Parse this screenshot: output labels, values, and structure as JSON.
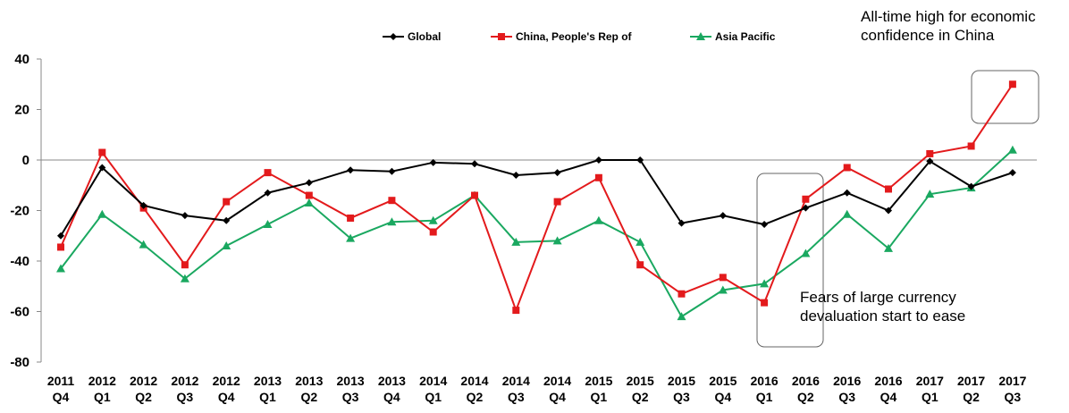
{
  "chart_data": {
    "type": "line",
    "title": "",
    "xlabel": "",
    "ylabel": "",
    "ylim": [
      -80,
      40
    ],
    "yticks": [
      40,
      20,
      0,
      -20,
      -40,
      -60,
      -80
    ],
    "categories": [
      [
        "2011",
        "Q4"
      ],
      [
        "2012",
        "Q1"
      ],
      [
        "2012",
        "Q2"
      ],
      [
        "2012",
        "Q3"
      ],
      [
        "2012",
        "Q4"
      ],
      [
        "2013",
        "Q1"
      ],
      [
        "2013",
        "Q2"
      ],
      [
        "2013",
        "Q3"
      ],
      [
        "2013",
        "Q4"
      ],
      [
        "2014",
        "Q1"
      ],
      [
        "2014",
        "Q2"
      ],
      [
        "2014",
        "Q3"
      ],
      [
        "2014",
        "Q4"
      ],
      [
        "2015",
        "Q1"
      ],
      [
        "2015",
        "Q2"
      ],
      [
        "2015",
        "Q3"
      ],
      [
        "2015",
        "Q4"
      ],
      [
        "2016",
        "Q1"
      ],
      [
        "2016",
        "Q2"
      ],
      [
        "2016",
        "Q3"
      ],
      [
        "2016",
        "Q4"
      ],
      [
        "2017",
        "Q1"
      ],
      [
        "2017",
        "Q2"
      ],
      [
        "2017",
        "Q3"
      ]
    ],
    "grid": false,
    "legend_position": "top",
    "series": [
      {
        "name": "Global",
        "color": "#000000",
        "marker": "diamond",
        "values": [
          -30,
          -3,
          -18,
          -22,
          -24,
          -13,
          -9,
          -4,
          -4.5,
          -1,
          -1.5,
          -6,
          -5,
          0,
          0,
          -25,
          -22,
          -25.5,
          -19,
          -13,
          -20,
          -0.5,
          -10.5,
          -5
        ]
      },
      {
        "name": "China, People's Rep of",
        "color": "#e31a1c",
        "marker": "square",
        "values": [
          -34.5,
          3,
          -19,
          -41.5,
          -16.5,
          -5,
          -14,
          -23,
          -16,
          -28.5,
          -14,
          -59.5,
          -16.5,
          -7,
          -41.5,
          -53,
          -46.5,
          -56.5,
          -15.5,
          -3,
          -11.5,
          2.5,
          5.5,
          30
        ]
      },
      {
        "name": "Asia Pacific",
        "color": "#1aa860",
        "marker": "triangle",
        "values": [
          -43,
          -21.5,
          -33.5,
          -47,
          -34,
          -25.5,
          -17,
          -31,
          -24.5,
          -24,
          -14,
          -32.5,
          -32,
          -24,
          -32.5,
          -62,
          -51.5,
          -49,
          -37,
          -21.5,
          -35,
          -13.5,
          -11,
          4
        ]
      }
    ],
    "annotations": [
      {
        "text_lines": [
          "All-time high for economic",
          "confidence in China"
        ]
      },
      {
        "text_lines": [
          "Fears of large currency",
          "devaluation start to ease"
        ]
      }
    ]
  }
}
